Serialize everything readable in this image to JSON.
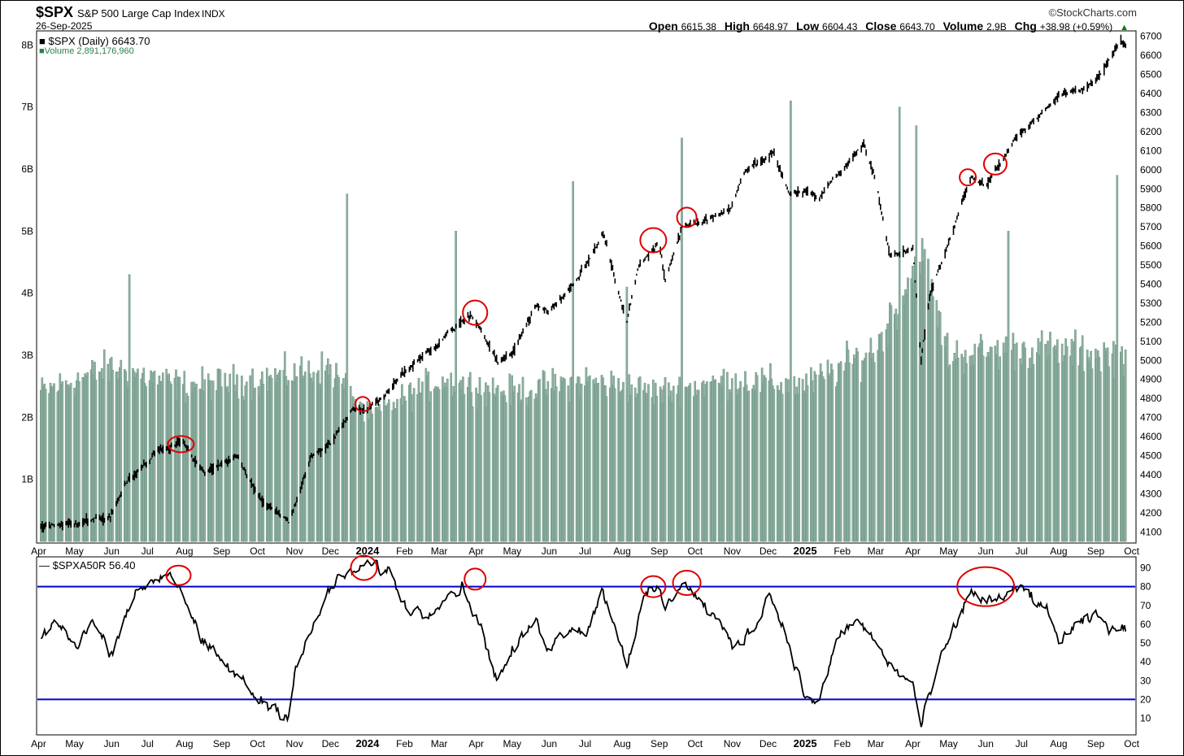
{
  "header": {
    "symbol": "$SPX",
    "name": "S&P 500 Large Cap Index",
    "exchange": "INDX",
    "date": "26-Sep-2025",
    "watermark": "©StockCharts.com",
    "open_label": "Open",
    "open_value": "6615.38",
    "high_label": "High",
    "high_value": "6648.97",
    "low_label": "Low",
    "low_value": "6604.43",
    "close_label": "Close",
    "close_value": "6643.70",
    "volume_label": "Volume",
    "volume_value": "2.9B",
    "chg_label": "Chg",
    "chg_value": "+38.98 (+0.59%)",
    "up_arrow": "▲"
  },
  "legend": {
    "price": "■ $SPX (Daily) 6643.70",
    "volume": "■Volume 2,891,176,960",
    "indicator": "— $SPXA50R 56.40"
  },
  "colors": {
    "price": "#000000",
    "volume_fill": "#8fb0a1",
    "volume_stroke": "#5e8a76",
    "indicator": "#000000",
    "threshold": "#0000cc",
    "circles": "#dd0000"
  },
  "chart_data": [
    {
      "type": "line",
      "title": "$SPX (Daily)",
      "series": [
        {
          "name": "$SPX",
          "x": [
            "2023-04-01",
            "2023-05-01",
            "2023-05-31",
            "2023-06-15",
            "2023-07-01",
            "2023-07-12",
            "2023-07-31",
            "2023-08-18",
            "2023-09-01",
            "2023-09-15",
            "2023-10-01",
            "2023-10-27",
            "2023-11-15",
            "2023-12-01",
            "2023-12-20",
            "2024-01-01",
            "2024-01-20",
            "2024-02-01",
            "2024-03-01",
            "2024-03-28",
            "2024-04-19",
            "2024-05-01",
            "2024-05-20",
            "2024-06-01",
            "2024-07-01",
            "2024-07-16",
            "2024-08-05",
            "2024-08-15",
            "2024-09-01",
            "2024-09-06",
            "2024-09-20",
            "2024-10-01",
            "2024-10-31",
            "2024-11-11",
            "2024-12-06",
            "2024-12-19",
            "2025-01-01",
            "2025-01-13",
            "2025-02-19",
            "2025-03-01",
            "2025-03-13",
            "2025-04-01",
            "2025-04-08",
            "2025-04-15",
            "2025-05-01",
            "2025-05-20",
            "2025-06-01",
            "2025-07-01",
            "2025-08-01",
            "2025-09-01",
            "2025-09-22",
            "2025-09-26"
          ],
          "values": [
            4130,
            4150,
            4180,
            4380,
            4460,
            4540,
            4560,
            4400,
            4460,
            4490,
            4280,
            4150,
            4500,
            4560,
            4760,
            4740,
            4860,
            4950,
            5100,
            5240,
            4990,
            5040,
            5300,
            5250,
            5500,
            5660,
            5200,
            5500,
            5620,
            5410,
            5700,
            5720,
            5800,
            5990,
            6090,
            5870,
            5900,
            5860,
            6130,
            5950,
            5550,
            5590,
            5000,
            5350,
            5620,
            5970,
            5920,
            6210,
            6390,
            6460,
            6680,
            6644
          ],
          "color": "#000000"
        }
      ],
      "ylim": [
        4050,
        6720
      ],
      "y_ticks": [
        4100,
        4200,
        4300,
        4400,
        4500,
        4600,
        4700,
        4800,
        4900,
        5000,
        5100,
        5200,
        5300,
        5400,
        5500,
        5600,
        5700,
        5800,
        5900,
        6000,
        6100,
        6200,
        6300,
        6400,
        6500,
        6600,
        6700
      ],
      "highlight_circles": [
        {
          "x": "2023-07-29",
          "y": 4560
        },
        {
          "x": "2023-12-28",
          "y": 4770
        },
        {
          "x": "2024-03-31",
          "y": 5250
        },
        {
          "x": "2024-08-27",
          "y": 5630
        },
        {
          "x": "2024-09-24",
          "y": 5750
        },
        {
          "x": "2025-05-17",
          "y": 5960
        },
        {
          "x": "2025-06-09",
          "y": 6030
        }
      ]
    },
    {
      "type": "bar",
      "title": "Volume",
      "seed_points": [
        {
          "x": "2023-04-01",
          "v": 2.4
        },
        {
          "x": "2023-06-01",
          "v": 2.8
        },
        {
          "x": "2023-08-01",
          "v": 2.5
        },
        {
          "x": "2023-10-01",
          "v": 2.6
        },
        {
          "x": "2023-12-01",
          "v": 2.8
        },
        {
          "x": "2024-01-01",
          "v": 2.0
        },
        {
          "x": "2024-03-01",
          "v": 2.6
        },
        {
          "x": "2024-05-01",
          "v": 2.4
        },
        {
          "x": "2024-07-01",
          "v": 2.6
        },
        {
          "x": "2024-09-01",
          "v": 2.4
        },
        {
          "x": "2024-11-01",
          "v": 2.6
        },
        {
          "x": "2025-01-01",
          "v": 2.5
        },
        {
          "x": "2025-03-01",
          "v": 3.1
        },
        {
          "x": "2025-04-08",
          "v": 4.6
        },
        {
          "x": "2025-05-01",
          "v": 3.0
        },
        {
          "x": "2025-07-01",
          "v": 3.1
        },
        {
          "x": "2025-09-26",
          "v": 3.0
        }
      ],
      "spikes": [
        {
          "x": "2023-06-16",
          "v": 4.3
        },
        {
          "x": "2023-12-15",
          "v": 5.6
        },
        {
          "x": "2024-03-15",
          "v": 5.0
        },
        {
          "x": "2024-06-21",
          "v": 5.8
        },
        {
          "x": "2024-08-05",
          "v": 4.1
        },
        {
          "x": "2024-09-20",
          "v": 6.5
        },
        {
          "x": "2024-12-20",
          "v": 7.1
        },
        {
          "x": "2025-03-21",
          "v": 7.0
        },
        {
          "x": "2025-04-04",
          "v": 6.7
        },
        {
          "x": "2025-06-20",
          "v": 5.0
        },
        {
          "x": "2025-09-19",
          "v": 5.9
        }
      ],
      "unit": "B",
      "ylim": [
        0,
        8.2
      ],
      "y_ticks": [
        1,
        2,
        3,
        4,
        5,
        6,
        7,
        8
      ],
      "y_tick_labels": [
        "1B",
        "2B",
        "3B",
        "4B",
        "5B",
        "6B",
        "7B",
        "8B"
      ]
    },
    {
      "type": "line",
      "title": "$SPXA50R",
      "series": [
        {
          "name": "$SPXA50R",
          "x": [
            "2023-04-01",
            "2023-04-15",
            "2023-05-01",
            "2023-05-15",
            "2023-06-01",
            "2023-06-15",
            "2023-07-01",
            "2023-07-20",
            "2023-08-01",
            "2023-08-15",
            "2023-09-01",
            "2023-09-15",
            "2023-10-01",
            "2023-10-27",
            "2023-11-01",
            "2023-11-15",
            "2023-12-01",
            "2023-12-15",
            "2024-01-01",
            "2024-01-20",
            "2024-02-01",
            "2024-02-20",
            "2024-03-01",
            "2024-03-20",
            "2024-04-01",
            "2024-04-19",
            "2024-05-01",
            "2024-05-20",
            "2024-06-01",
            "2024-06-20",
            "2024-07-01",
            "2024-07-16",
            "2024-08-05",
            "2024-08-20",
            "2024-09-01",
            "2024-09-06",
            "2024-09-20",
            "2024-10-01",
            "2024-10-20",
            "2024-11-01",
            "2024-11-20",
            "2024-12-01",
            "2024-12-20",
            "2025-01-01",
            "2025-01-13",
            "2025-01-30",
            "2025-02-15",
            "2025-03-01",
            "2025-03-13",
            "2025-04-01",
            "2025-04-08",
            "2025-04-25",
            "2025-05-20",
            "2025-06-01",
            "2025-06-20",
            "2025-07-01",
            "2025-07-20",
            "2025-08-01",
            "2025-08-20",
            "2025-09-01",
            "2025-09-15",
            "2025-09-26"
          ],
          "values": [
            52,
            62,
            48,
            62,
            45,
            70,
            82,
            88,
            75,
            50,
            40,
            32,
            20,
            12,
            35,
            55,
            80,
            86,
            92,
            88,
            70,
            65,
            74,
            80,
            65,
            30,
            45,
            62,
            48,
            60,
            55,
            78,
            40,
            74,
            80,
            66,
            84,
            75,
            62,
            48,
            58,
            78,
            48,
            20,
            20,
            55,
            62,
            50,
            38,
            28,
            6,
            42,
            78,
            72,
            75,
            80,
            68,
            52,
            60,
            64,
            58,
            56
          ],
          "color": "#000000"
        }
      ],
      "ylim": [
        2,
        95
      ],
      "y_ticks": [
        10,
        20,
        30,
        40,
        50,
        60,
        70,
        80,
        90
      ],
      "threshold_lines": [
        20,
        80
      ],
      "highlight_circles": [
        {
          "x": "2023-07-27",
          "y": 86
        },
        {
          "x": "2023-12-29",
          "y": 90
        },
        {
          "x": "2024-03-31",
          "y": 84
        },
        {
          "x": "2024-08-27",
          "y": 80
        },
        {
          "x": "2024-09-24",
          "y": 82
        },
        {
          "x": "2025-06-01",
          "y": 80
        }
      ]
    }
  ],
  "x_axis": {
    "start": "2023-03-31",
    "end": "2025-10-04",
    "ticks": [
      {
        "label": "Apr",
        "date": "2023-04-01",
        "bold": false
      },
      {
        "label": "May",
        "date": "2023-05-01",
        "bold": false
      },
      {
        "label": "Jun",
        "date": "2023-06-01",
        "bold": false
      },
      {
        "label": "Jul",
        "date": "2023-07-01",
        "bold": false
      },
      {
        "label": "Aug",
        "date": "2023-08-01",
        "bold": false
      },
      {
        "label": "Sep",
        "date": "2023-09-01",
        "bold": false
      },
      {
        "label": "Oct",
        "date": "2023-10-01",
        "bold": false
      },
      {
        "label": "Nov",
        "date": "2023-11-01",
        "bold": false
      },
      {
        "label": "Dec",
        "date": "2023-12-01",
        "bold": false
      },
      {
        "label": "2024",
        "date": "2024-01-01",
        "bold": true
      },
      {
        "label": "Feb",
        "date": "2024-02-01",
        "bold": false
      },
      {
        "label": "Mar",
        "date": "2024-03-01",
        "bold": false
      },
      {
        "label": "Apr",
        "date": "2024-04-01",
        "bold": false
      },
      {
        "label": "May",
        "date": "2024-05-01",
        "bold": false
      },
      {
        "label": "Jun",
        "date": "2024-06-01",
        "bold": false
      },
      {
        "label": "Jul",
        "date": "2024-07-01",
        "bold": false
      },
      {
        "label": "Aug",
        "date": "2024-08-01",
        "bold": false
      },
      {
        "label": "Sep",
        "date": "2024-09-01",
        "bold": false
      },
      {
        "label": "Oct",
        "date": "2024-10-01",
        "bold": false
      },
      {
        "label": "Nov",
        "date": "2024-11-01",
        "bold": false
      },
      {
        "label": "Dec",
        "date": "2024-12-01",
        "bold": false
      },
      {
        "label": "2025",
        "date": "2025-01-01",
        "bold": true
      },
      {
        "label": "Feb",
        "date": "2025-02-01",
        "bold": false
      },
      {
        "label": "Mar",
        "date": "2025-03-01",
        "bold": false
      },
      {
        "label": "Apr",
        "date": "2025-04-01",
        "bold": false
      },
      {
        "label": "May",
        "date": "2025-05-01",
        "bold": false
      },
      {
        "label": "Jun",
        "date": "2025-06-01",
        "bold": false
      },
      {
        "label": "Jul",
        "date": "2025-07-01",
        "bold": false
      },
      {
        "label": "Aug",
        "date": "2025-08-01",
        "bold": false
      },
      {
        "label": "Sep",
        "date": "2025-09-01",
        "bold": false
      },
      {
        "label": "Oct",
        "date": "2025-10-01",
        "bold": false
      }
    ]
  }
}
